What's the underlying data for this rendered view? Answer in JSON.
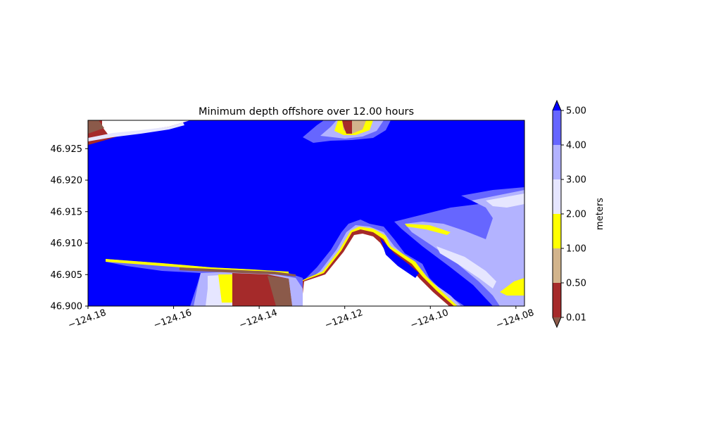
{
  "chart_data": {
    "type": "heatmap",
    "title": "Minimum depth offshore over 12.00 hours",
    "xlabel": "",
    "ylabel": "",
    "xlim": [
      -124.18,
      -124.078
    ],
    "ylim": [
      46.9,
      46.9295
    ],
    "x_ticks": [
      {
        "value": -124.18,
        "label": "−124.18"
      },
      {
        "value": -124.16,
        "label": "−124.16"
      },
      {
        "value": -124.14,
        "label": "−124.14"
      },
      {
        "value": -124.12,
        "label": "−124.12"
      },
      {
        "value": -124.1,
        "label": "−124.10"
      },
      {
        "value": -124.08,
        "label": "−124.08"
      }
    ],
    "y_ticks": [
      {
        "value": 46.9,
        "label": "46.900"
      },
      {
        "value": 46.905,
        "label": "46.905"
      },
      {
        "value": 46.91,
        "label": "46.910"
      },
      {
        "value": 46.915,
        "label": "46.915"
      },
      {
        "value": 46.92,
        "label": "46.920"
      },
      {
        "value": 46.925,
        "label": "46.925"
      }
    ],
    "colorbar": {
      "label": "meters",
      "levels": [
        {
          "label": "0.01",
          "value": 0.01
        },
        {
          "label": "0.50",
          "value": 0.5
        },
        {
          "label": "1.00",
          "value": 1.0
        },
        {
          "label": "2.00",
          "value": 2.0
        },
        {
          "label": "3.00",
          "value": 3.0
        },
        {
          "label": "4.00",
          "value": 4.0
        },
        {
          "label": "5.00",
          "value": 5.0
        }
      ],
      "colors": [
        "#a52a2a",
        "#d2b48c",
        "#ffff00",
        "#e6e6ff",
        "#b3b3ff",
        "#6666ff"
      ],
      "under_color": "#8b5a4a",
      "over_color": "#0000ff",
      "extend": "both"
    },
    "grid": false,
    "legend": "none"
  }
}
